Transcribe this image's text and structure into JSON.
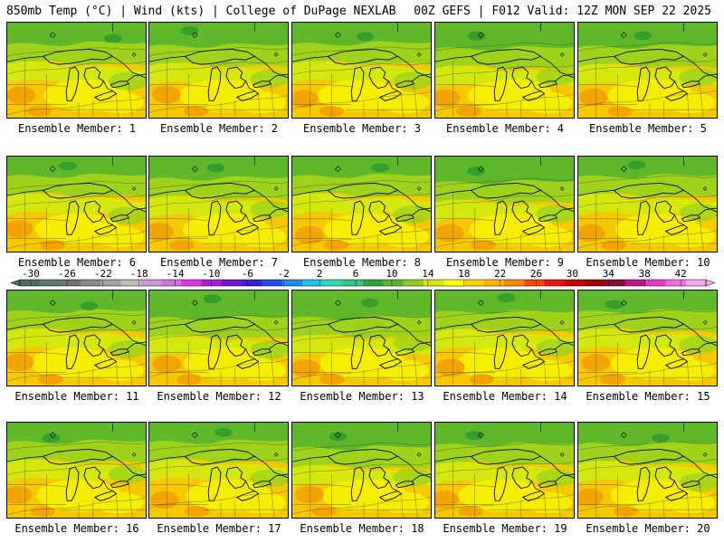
{
  "header": {
    "left": "850mb Temp (°C) | Wind (kts) | College of DuPage NEXLAB",
    "right": "00Z GEFS | F012 Valid: 12Z MON SEP 22 2025"
  },
  "panels": [
    {
      "label": "Ensemble Member: 1"
    },
    {
      "label": "Ensemble Member: 2"
    },
    {
      "label": "Ensemble Member: 3"
    },
    {
      "label": "Ensemble Member: 4"
    },
    {
      "label": "Ensemble Member: 5"
    },
    {
      "label": "Ensemble Member: 6"
    },
    {
      "label": "Ensemble Member: 7"
    },
    {
      "label": "Ensemble Member: 8"
    },
    {
      "label": "Ensemble Member: 9"
    },
    {
      "label": "Ensemble Member: 10"
    },
    {
      "label": "Ensemble Member: 11"
    },
    {
      "label": "Ensemble Member: 12"
    },
    {
      "label": "Ensemble Member: 13"
    },
    {
      "label": "Ensemble Member: 14"
    },
    {
      "label": "Ensemble Member: 15"
    },
    {
      "label": "Ensemble Member: 16"
    },
    {
      "label": "Ensemble Member: 17"
    },
    {
      "label": "Ensemble Member: 18"
    },
    {
      "label": "Ensemble Member: 19"
    },
    {
      "label": "Ensemble Member: 20"
    }
  ],
  "colorbar": {
    "ticks": [
      "-30",
      "-26",
      "-22",
      "-18",
      "-14",
      "-10",
      "-6",
      "-2",
      "2",
      "6",
      "10",
      "14",
      "18",
      "22",
      "26",
      "30",
      "34",
      "38",
      "42"
    ],
    "colors": [
      "#4d6b5e",
      "#5f7b6b",
      "#737373",
      "#8a8a8a",
      "#a3a3a3",
      "#bdbdbd",
      "#c89ad8",
      "#d36fe0",
      "#e033e8",
      "#b31ad8",
      "#7a14c8",
      "#3c1fd1",
      "#1f4fe6",
      "#1e8ff0",
      "#22c6ea",
      "#33d9b0",
      "#2fc78a",
      "#2ca63c",
      "#55b830",
      "#8fcc22",
      "#d7e60e",
      "#ffff00",
      "#ffd700",
      "#ffb300",
      "#ff8800",
      "#ff4400",
      "#ee1111",
      "#cc0000",
      "#a00000",
      "#8a0a3a",
      "#c0148a",
      "#e03cc8",
      "#f06ee0",
      "#f8a8f0"
    ]
  },
  "map_colors": {
    "green": "#5fb82a",
    "yellow_green": "#9fd21a",
    "lime": "#d4e80e",
    "yellow": "#f6ee00",
    "gold": "#f5c800",
    "orange": "#f2a400"
  }
}
